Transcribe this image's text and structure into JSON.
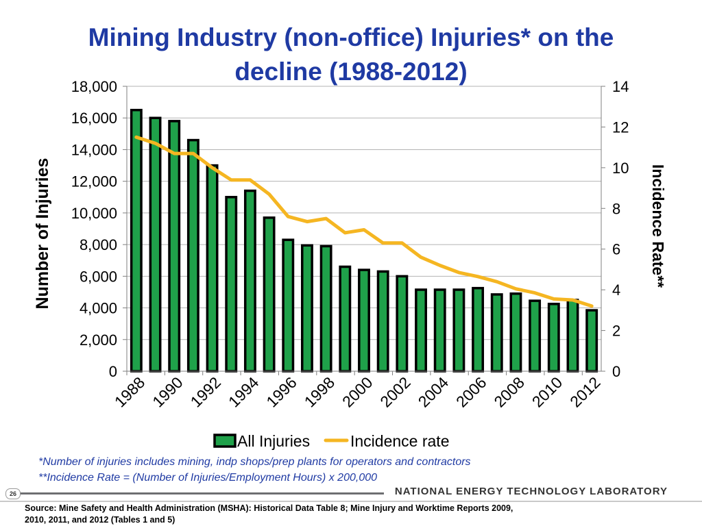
{
  "slide": {
    "title_line1": "Mining Industry (non-office) Injuries* on the",
    "title_line2": "decline (1988-2012)",
    "footnote1": "*Number of injuries includes mining, indp shops/prep plants for operators and contractors",
    "footnote2": "**Incidence Rate = (Number of Injuries/Employment Hours) x 200,000",
    "page_number": "26",
    "organization": "NATIONAL ENERGY TECHNOLOGY LABORATORY",
    "source_line1": "Source:  Mine Safety and Health Administration (MSHA): Historical Data Table 8; Mine Injury and Worktime Reports 2009,",
    "source_line2": "2010, 2011, and 2012 (Tables 1 and 5)"
  },
  "chart_data": {
    "type": "bar",
    "x": [
      1988,
      1989,
      1990,
      1991,
      1992,
      1993,
      1994,
      1995,
      1996,
      1997,
      1998,
      1999,
      2000,
      2001,
      2002,
      2003,
      2004,
      2005,
      2006,
      2007,
      2008,
      2009,
      2010,
      2011,
      2012
    ],
    "x_tick_labels": [
      "1988",
      "1990",
      "1992",
      "1994",
      "1996",
      "1998",
      "2000",
      "2002",
      "2004",
      "2006",
      "2008",
      "2010",
      "2012"
    ],
    "series": [
      {
        "name": "All Injuries",
        "type": "bar",
        "axis": "left",
        "color": "#1fa14a",
        "values": [
          16500,
          16000,
          15800,
          14600,
          13000,
          11000,
          11400,
          9700,
          8300,
          7950,
          7900,
          6600,
          6400,
          6300,
          6000,
          5150,
          5150,
          5150,
          5250,
          4850,
          4900,
          4450,
          4250,
          4500,
          3850
        ]
      },
      {
        "name": "Incidence rate",
        "type": "line",
        "axis": "right",
        "color": "#f5b622",
        "values": [
          11.5,
          11.2,
          10.7,
          10.7,
          10.0,
          9.4,
          9.4,
          8.7,
          7.6,
          7.35,
          7.5,
          6.8,
          6.95,
          6.3,
          6.3,
          5.6,
          5.2,
          4.85,
          4.65,
          4.4,
          4.05,
          3.85,
          3.55,
          3.5,
          3.2
        ]
      }
    ],
    "y_left": {
      "label": "Number of Injuries",
      "min": 0,
      "max": 18000,
      "step": 2000,
      "tick_labels": [
        "0",
        "2,000",
        "4,000",
        "6,000",
        "8,000",
        "10,000",
        "12,000",
        "14,000",
        "16,000",
        "18,000"
      ]
    },
    "y_right": {
      "label": "Incidence Rate**",
      "min": 0,
      "max": 14,
      "step": 2,
      "tick_labels": [
        "0",
        "2",
        "4",
        "6",
        "8",
        "10",
        "12",
        "14"
      ]
    },
    "grid": true,
    "legend_position": "bottom"
  }
}
